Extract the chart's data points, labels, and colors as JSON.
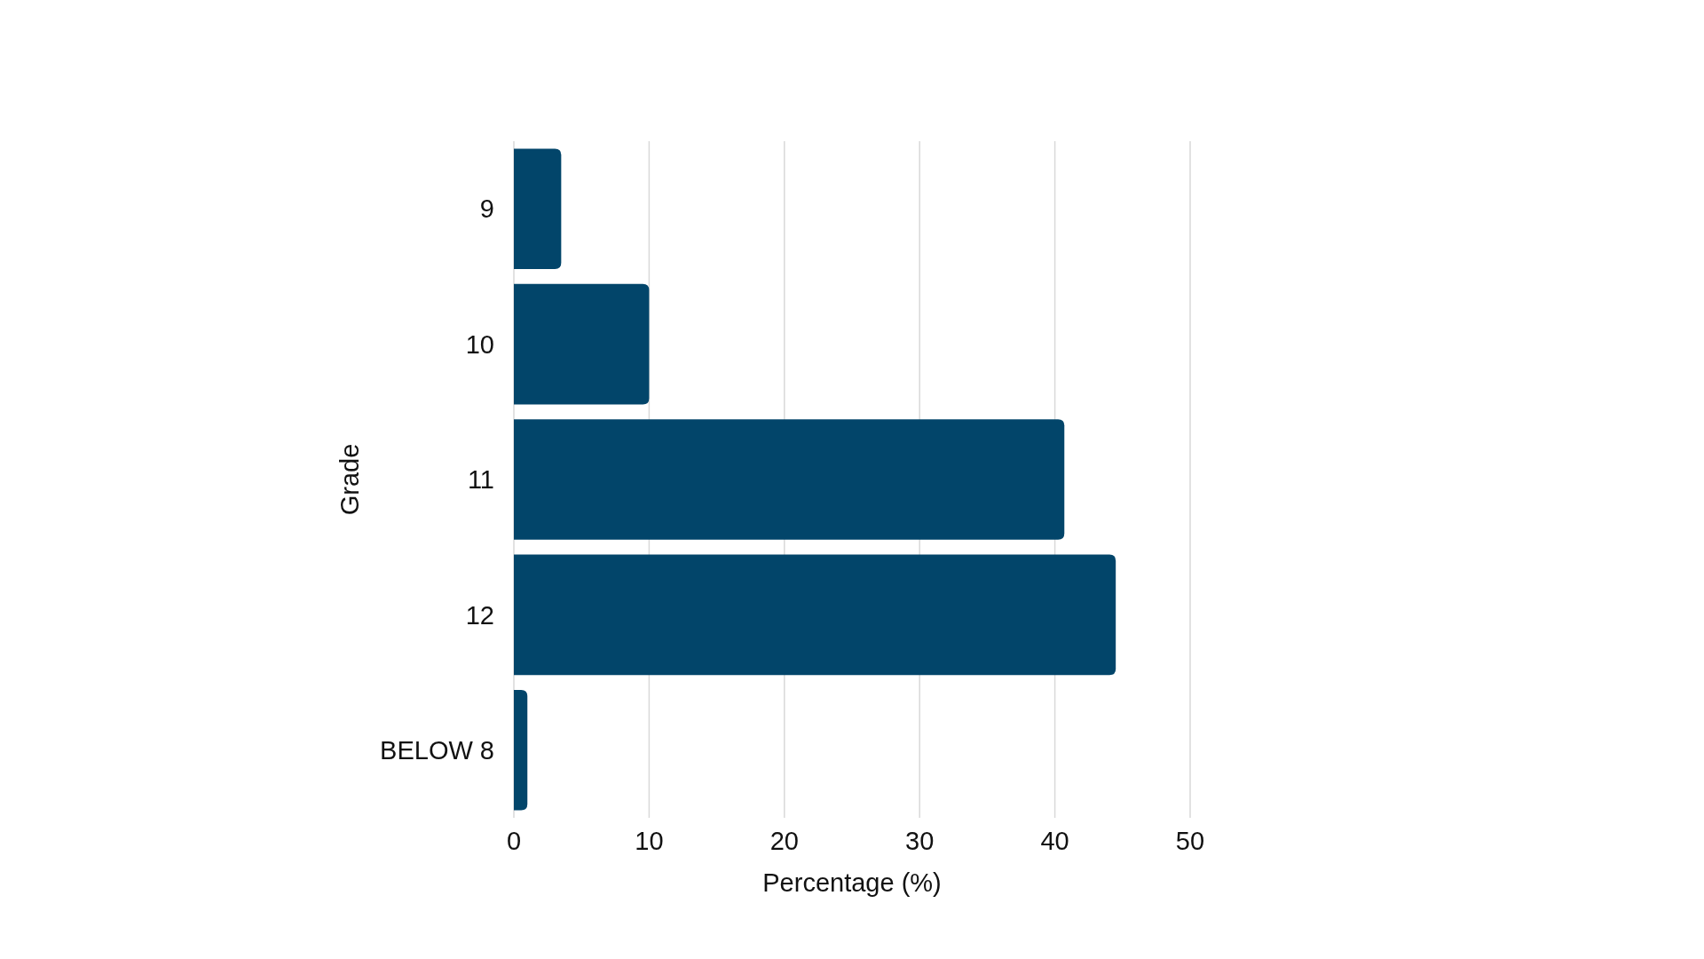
{
  "chart_data": {
    "type": "bar",
    "orientation": "horizontal",
    "xlabel": "Percentage (%)",
    "ylabel": "Grade",
    "categories": [
      "9",
      "10",
      "11",
      "12",
      "BELOW 8"
    ],
    "values": [
      3.5,
      10,
      40.7,
      44.5,
      1
    ],
    "color": "#02456a",
    "xlim": [
      0,
      50
    ],
    "xticks": [
      0,
      10,
      20,
      30,
      40,
      50
    ],
    "grid": "x"
  }
}
